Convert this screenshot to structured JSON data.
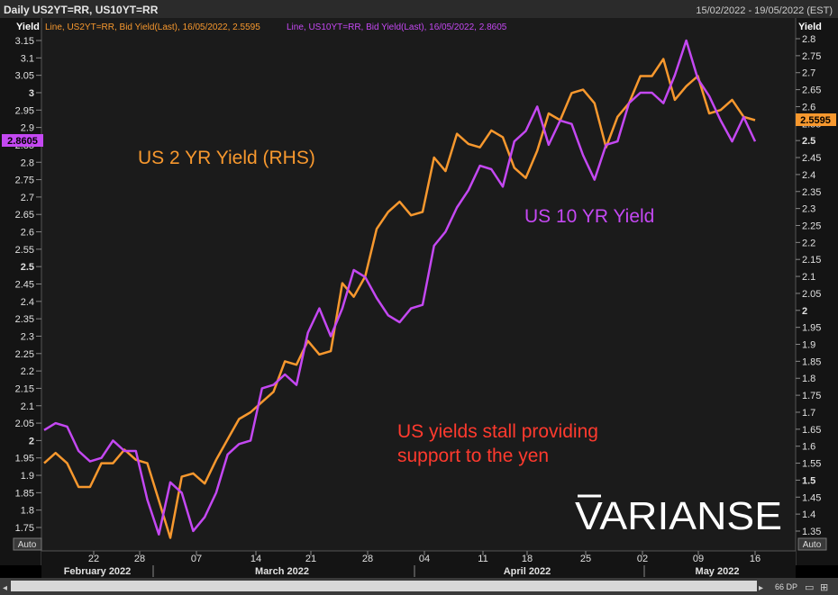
{
  "header": {
    "title": "Daily US2YT=RR, US10YT=RR",
    "date_range": "15/02/2022 - 19/05/2022 (EST)"
  },
  "legend": {
    "us2_entry": "Line, US2YT=RR, Bid Yield(Last), 16/05/2022, 2.5595",
    "us10_entry": "Line, US10YT=RR, Bid Yield(Last), 16/05/2022, 2.8605"
  },
  "axis": {
    "left_title": "Yield",
    "right_title": "Yield",
    "left_auto": "Auto",
    "right_auto": "Auto",
    "left_ticks": [
      "1.75",
      "1.8",
      "1.85",
      "1.9",
      "1.95",
      "2",
      "2.05",
      "2.1",
      "2.15",
      "2.2",
      "2.25",
      "2.3",
      "2.35",
      "2.4",
      "2.45",
      "2.5",
      "2.55",
      "2.6",
      "2.65",
      "2.7",
      "2.75",
      "2.8",
      "2.85",
      "2.9",
      "2.95",
      "3",
      "3.05",
      "3.1",
      "3.15"
    ],
    "right_ticks": [
      "1.35",
      "1.4",
      "1.45",
      "1.5",
      "1.55",
      "1.6",
      "1.65",
      "1.7",
      "1.75",
      "1.8",
      "1.85",
      "1.9",
      "1.95",
      "2",
      "2.05",
      "2.1",
      "2.15",
      "2.2",
      "2.25",
      "2.3",
      "2.35",
      "2.4",
      "2.45",
      "2.5",
      "2.55",
      "2.6",
      "2.65",
      "2.7",
      "2.75",
      "2.8"
    ],
    "day_ticks": [
      "22",
      "28",
      "07",
      "14",
      "21",
      "28",
      "04",
      "11",
      "18",
      "25",
      "02",
      "09",
      "16"
    ],
    "month_labels": [
      "February 2022",
      "March 2022",
      "April 2022",
      "May 2022"
    ],
    "left_badge": "2.8605",
    "right_badge": "2.5595"
  },
  "annotations": {
    "us2_label": "US 2 YR Yield (RHS)",
    "us10_label": "US 10 YR Yield",
    "note_line1": "US yields stall providing",
    "note_line2": "support to the yen",
    "watermark": "VARIANSE"
  },
  "footer": {
    "scroll_label": "66 DP"
  },
  "colors": {
    "us2": "#f7982e",
    "us10": "#c448f2",
    "note": "#ff3a2e",
    "grid": "#444444",
    "plot_bg": "#1b1b1b"
  },
  "chart_data": {
    "type": "line",
    "title": "Daily US2YT=RR, US10YT=RR",
    "x": [
      "15 Feb",
      "16 Feb",
      "17 Feb",
      "18 Feb",
      "22 Feb",
      "23 Feb",
      "24 Feb",
      "25 Feb",
      "28 Feb",
      "01 Mar",
      "02 Mar",
      "03 Mar",
      "04 Mar",
      "07 Mar",
      "08 Mar",
      "09 Mar",
      "10 Mar",
      "11 Mar",
      "14 Mar",
      "15 Mar",
      "16 Mar",
      "17 Mar",
      "18 Mar",
      "21 Mar",
      "22 Mar",
      "23 Mar",
      "24 Mar",
      "25 Mar",
      "28 Mar",
      "29 Mar",
      "30 Mar",
      "31 Mar",
      "01 Apr",
      "04 Apr",
      "05 Apr",
      "06 Apr",
      "07 Apr",
      "08 Apr",
      "11 Apr",
      "12 Apr",
      "13 Apr",
      "14 Apr",
      "18 Apr",
      "19 Apr",
      "20 Apr",
      "21 Apr",
      "22 Apr",
      "25 Apr",
      "26 Apr",
      "27 Apr",
      "28 Apr",
      "29 Apr",
      "02 May",
      "03 May",
      "04 May",
      "05 May",
      "06 May",
      "09 May",
      "10 May",
      "11 May",
      "12 May",
      "13 May",
      "16 May"
    ],
    "series": [
      {
        "name": "US2YT=RR Bid Yield (RHS)",
        "axis": "right",
        "values": [
          1.55,
          1.58,
          1.55,
          1.48,
          1.48,
          1.55,
          1.55,
          1.59,
          1.56,
          1.55,
          1.44,
          1.33,
          1.51,
          1.52,
          1.49,
          1.56,
          1.62,
          1.68,
          1.7,
          1.73,
          1.76,
          1.85,
          1.84,
          1.91,
          1.87,
          1.88,
          2.08,
          2.04,
          2.1,
          2.24,
          2.29,
          2.32,
          2.28,
          2.29,
          2.45,
          2.41,
          2.52,
          2.49,
          2.48,
          2.53,
          2.51,
          2.42,
          2.39,
          2.47,
          2.58,
          2.56,
          2.64,
          2.65,
          2.61,
          2.48,
          2.57,
          2.61,
          2.69,
          2.69,
          2.74,
          2.62,
          2.66,
          2.69,
          2.58,
          2.59,
          2.62,
          2.57,
          2.56
        ]
      },
      {
        "name": "US10YT=RR Bid Yield (LHS)",
        "axis": "left",
        "values": [
          2.03,
          2.05,
          2.04,
          1.97,
          1.94,
          1.95,
          2.0,
          1.97,
          1.97,
          1.83,
          1.73,
          1.88,
          1.85,
          1.74,
          1.78,
          1.85,
          1.96,
          1.99,
          2.0,
          2.15,
          2.16,
          2.19,
          2.16,
          2.31,
          2.38,
          2.3,
          2.38,
          2.49,
          2.47,
          2.41,
          2.36,
          2.34,
          2.38,
          2.39,
          2.56,
          2.6,
          2.67,
          2.72,
          2.79,
          2.78,
          2.73,
          2.86,
          2.89,
          2.96,
          2.85,
          2.92,
          2.91,
          2.82,
          2.75,
          2.85,
          2.86,
          2.97,
          3.0,
          3.0,
          2.97,
          3.05,
          3.15,
          3.04,
          2.99,
          2.92,
          2.86,
          2.93,
          2.86
        ]
      }
    ],
    "left_ylim": [
      1.72,
      3.18
    ],
    "right_ylim": [
      1.32,
      2.83
    ],
    "xlabel": "",
    "ylabel": "Yield",
    "grid": false
  }
}
